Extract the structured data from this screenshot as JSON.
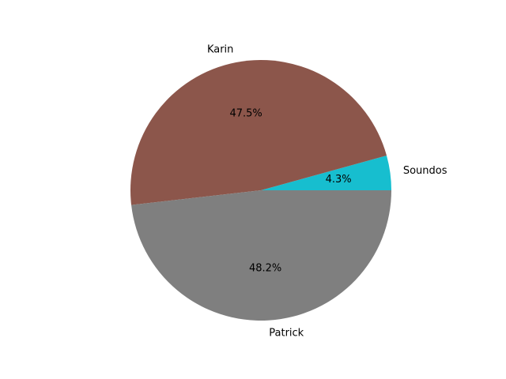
{
  "chart_data": {
    "type": "pie",
    "title": "",
    "start_angle_deg": 0,
    "direction": "counterclockwise",
    "slices": [
      {
        "label": "Soundos",
        "value": 4.3,
        "pct_label": "4.3%",
        "color": "#17becf"
      },
      {
        "label": "Karin",
        "value": 47.5,
        "pct_label": "47.5%",
        "color": "#8c564b"
      },
      {
        "label": "Patrick",
        "value": 48.2,
        "pct_label": "48.2%",
        "color": "#7f7f7f"
      }
    ]
  }
}
